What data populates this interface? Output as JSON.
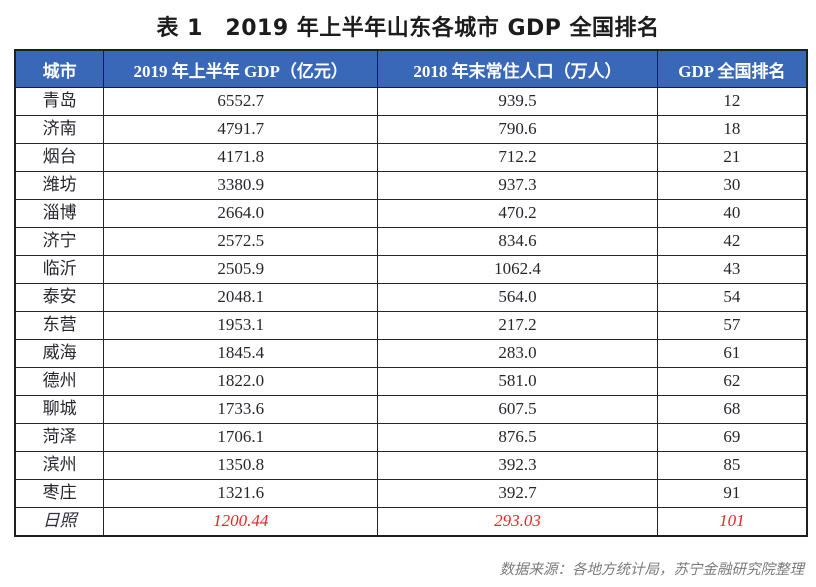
{
  "chart_data": {
    "type": "table",
    "title": "表 1　2019 年上半年山东各城市 GDP 全国排名",
    "columns": [
      "城市",
      "2019 年上半年 GDP（亿元）",
      "2018 年末常住人口（万人）",
      "GDP 全国排名"
    ],
    "rows": [
      {
        "city": "青岛",
        "gdp": "6552.7",
        "population": "939.5",
        "rank": "12",
        "highlight": false
      },
      {
        "city": "济南",
        "gdp": "4791.7",
        "population": "790.6",
        "rank": "18",
        "highlight": false
      },
      {
        "city": "烟台",
        "gdp": "4171.8",
        "population": "712.2",
        "rank": "21",
        "highlight": false
      },
      {
        "city": "潍坊",
        "gdp": "3380.9",
        "population": "937.3",
        "rank": "30",
        "highlight": false
      },
      {
        "city": "淄博",
        "gdp": "2664.0",
        "population": "470.2",
        "rank": "40",
        "highlight": false
      },
      {
        "city": "济宁",
        "gdp": "2572.5",
        "population": "834.6",
        "rank": "42",
        "highlight": false
      },
      {
        "city": "临沂",
        "gdp": "2505.9",
        "population": "1062.4",
        "rank": "43",
        "highlight": false
      },
      {
        "city": "泰安",
        "gdp": "2048.1",
        "population": "564.0",
        "rank": "54",
        "highlight": false
      },
      {
        "city": "东营",
        "gdp": "1953.1",
        "population": "217.2",
        "rank": "57",
        "highlight": false
      },
      {
        "city": "威海",
        "gdp": "1845.4",
        "population": "283.0",
        "rank": "61",
        "highlight": false
      },
      {
        "city": "德州",
        "gdp": "1822.0",
        "population": "581.0",
        "rank": "62",
        "highlight": false
      },
      {
        "city": "聊城",
        "gdp": "1733.6",
        "population": "607.5",
        "rank": "68",
        "highlight": false
      },
      {
        "city": "菏泽",
        "gdp": "1706.1",
        "population": "876.5",
        "rank": "69",
        "highlight": false
      },
      {
        "city": "滨州",
        "gdp": "1350.8",
        "population": "392.3",
        "rank": "85",
        "highlight": false
      },
      {
        "city": "枣庄",
        "gdp": "1321.6",
        "population": "392.7",
        "rank": "91",
        "highlight": false
      },
      {
        "city": "日照",
        "gdp": "1200.44",
        "population": "293.03",
        "rank": "101",
        "highlight": true
      }
    ],
    "source_note": "数据来源：各地方统计局，苏宁金融研究院整理"
  },
  "colors": {
    "header_bg": "#3a68b8",
    "header_text": "#ffffff",
    "highlight_text": "#e12727",
    "body_text": "#26262e",
    "border": "#1f1f1f",
    "footer_text": "#7b7b7b"
  }
}
